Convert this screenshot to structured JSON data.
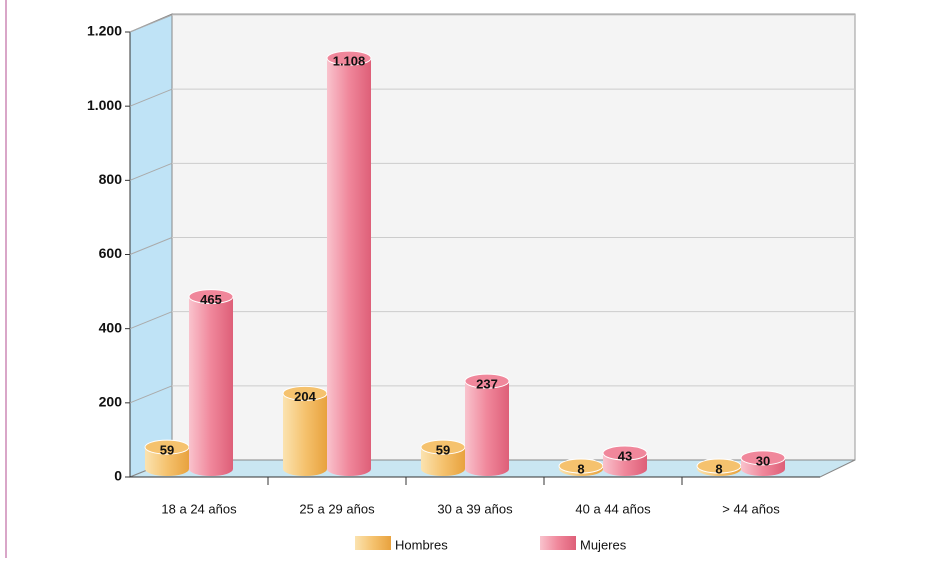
{
  "chart_data": {
    "type": "bar3d",
    "categories": [
      "18 a 24 años",
      "25 a 29 años",
      "30 a 39 años",
      "40 a 44 años",
      "> 44 años"
    ],
    "series": [
      {
        "name": "Hombres",
        "color": "#f5c26e",
        "values": [
          59,
          204,
          59,
          8,
          8
        ]
      },
      {
        "name": "Mujeres",
        "color": "#f0879b",
        "values": [
          465,
          1108,
          237,
          43,
          30
        ],
        "value_labels": [
          "465",
          "1.108",
          "237",
          "43",
          "30"
        ]
      }
    ],
    "ylim": [
      0,
      1200
    ],
    "yticks": [
      0,
      200,
      400,
      600,
      800,
      {
        "value": 1000,
        "label": "1.000"
      },
      {
        "value": 1200,
        "label": "1.200"
      }
    ],
    "grid": true,
    "legend": "bottom"
  }
}
